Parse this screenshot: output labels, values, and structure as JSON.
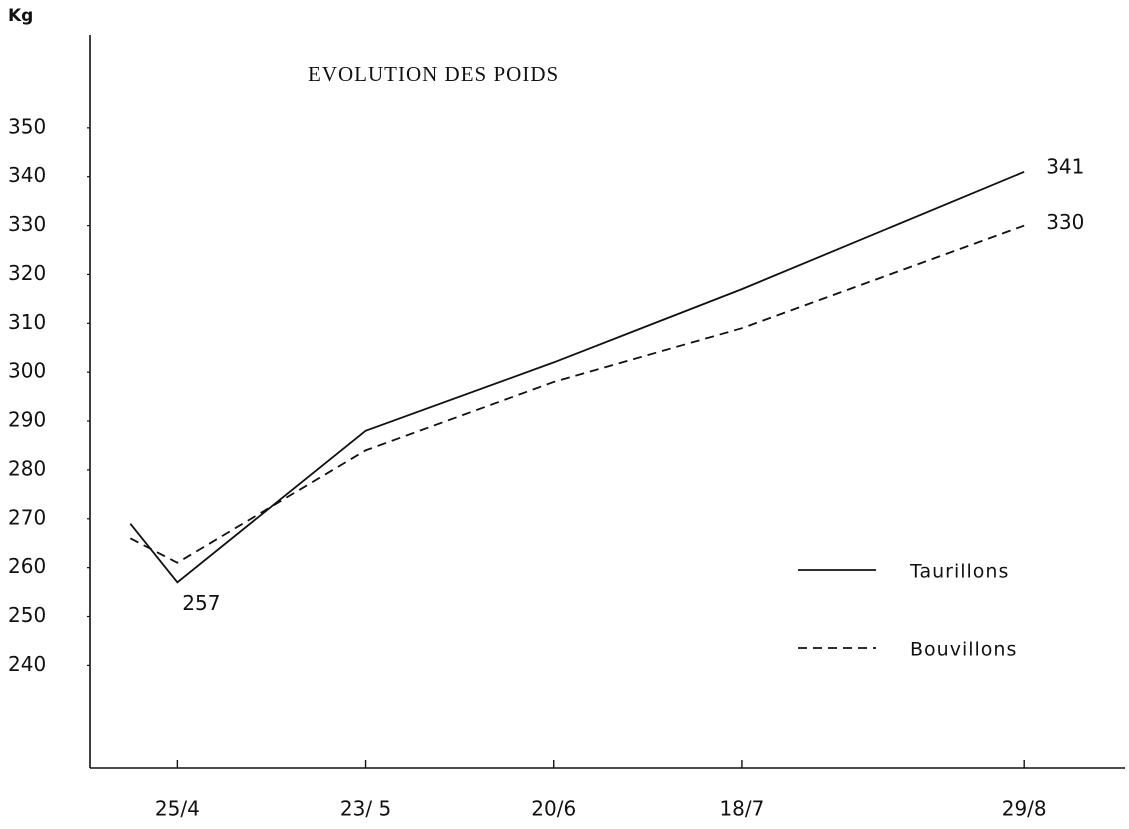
{
  "chart_data": {
    "type": "line",
    "title": "EVOLUTION DES POIDS",
    "y_label": "Kg",
    "x": [
      -7,
      0,
      28,
      56,
      84,
      126
    ],
    "xlim": [
      -13,
      141
    ],
    "xticks": [
      {
        "value": 0,
        "label": "25/4"
      },
      {
        "value": 28,
        "label": "23/ 5"
      },
      {
        "value": 56,
        "label": "20/6"
      },
      {
        "value": 84,
        "label": "18/7"
      },
      {
        "value": 126,
        "label": "29/8"
      }
    ],
    "ylim": [
      219,
      369
    ],
    "yticks": [
      240,
      250,
      260,
      270,
      280,
      290,
      300,
      310,
      320,
      330,
      340,
      350
    ],
    "legend": "right",
    "series": [
      {
        "name": "Taurillons",
        "color": "#111111",
        "style": "solid",
        "values": [
          269,
          257,
          288,
          302,
          317,
          341
        ]
      },
      {
        "name": "Bouvillons",
        "color": "#111111",
        "style": "dashed",
        "values": [
          266,
          261,
          284,
          298,
          309,
          330
        ]
      }
    ]
  }
}
